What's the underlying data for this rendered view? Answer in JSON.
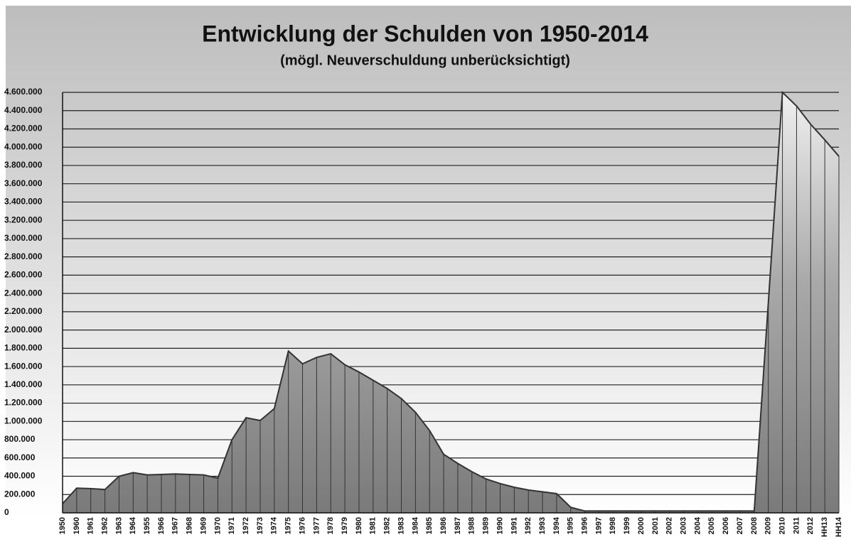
{
  "chart_data": {
    "type": "area",
    "title": "Entwicklung der Schulden von 1950-2014",
    "subtitle": "(mögl. Neuverschuldung unberücksichtigt)",
    "categories": [
      "1950",
      "1960",
      "1961",
      "1962",
      "1963",
      "1964",
      "1955",
      "1966",
      "1967",
      "1968",
      "1969",
      "1970",
      "1971",
      "1972",
      "1973",
      "1974",
      "1975",
      "1976",
      "1977",
      "1978",
      "1979",
      "1980",
      "1981",
      "1982",
      "1983",
      "1984",
      "1985",
      "1986",
      "1987",
      "1988",
      "1989",
      "1990",
      "1991",
      "1992",
      "1993",
      "1994",
      "1995",
      "1996",
      "1997",
      "1998",
      "1999",
      "2000",
      "2001",
      "2002",
      "2003",
      "2004",
      "2005",
      "2006",
      "2007",
      "2008",
      "2009",
      "2010",
      "2011",
      "2012",
      "HH13",
      "HH14"
    ],
    "values": [
      100000,
      270000,
      265000,
      255000,
      400000,
      440000,
      415000,
      420000,
      425000,
      420000,
      415000,
      380000,
      800000,
      1040000,
      1010000,
      1140000,
      1770000,
      1630000,
      1700000,
      1740000,
      1620000,
      1540000,
      1450000,
      1360000,
      1250000,
      1100000,
      900000,
      640000,
      540000,
      450000,
      370000,
      320000,
      280000,
      250000,
      230000,
      210000,
      60000,
      20000,
      20000,
      20000,
      20000,
      20000,
      20000,
      20000,
      20000,
      20000,
      20000,
      20000,
      20000,
      20000,
      2300000,
      4600000,
      4450000,
      4250000,
      4080000,
      3900000
    ],
    "color": "#808080",
    "ylim": [
      0,
      4600000
    ],
    "yticks": [
      0,
      {
        "value": 200000,
        "label": "200.000"
      },
      {
        "value": 400000,
        "label": "400.000"
      },
      {
        "value": 600000,
        "label": "600.000"
      },
      {
        "value": 800000,
        "label": "800.000"
      },
      {
        "value": 1000000,
        "label": "1.000.000"
      },
      {
        "value": 1200000,
        "label": "1.200.000"
      },
      {
        "value": 1400000,
        "label": "1.400.000"
      },
      {
        "value": 1600000,
        "label": "1.600.000"
      },
      {
        "value": 1800000,
        "label": "1.800.000"
      },
      {
        "value": 2000000,
        "label": "2.000.000"
      },
      {
        "value": 2200000,
        "label": "2.200.000"
      },
      {
        "value": 2400000,
        "label": "2.400.000"
      },
      {
        "value": 2600000,
        "label": "2.600.000"
      },
      {
        "value": 2800000,
        "label": "2.800.000"
      },
      {
        "value": 3000000,
        "label": "3.000.000"
      },
      {
        "value": 3200000,
        "label": "3.200.000"
      },
      {
        "value": 3400000,
        "label": "3.400.000"
      },
      {
        "value": 3600000,
        "label": "3.600.000"
      },
      {
        "value": 3800000,
        "label": "3.800.000"
      },
      {
        "value": 4000000,
        "label": "4.000.000"
      },
      {
        "value": 4200000,
        "label": "4.200.000"
      },
      {
        "value": 4400000,
        "label": "4.400.000"
      },
      {
        "value": 4600000,
        "label": "4.600.000"
      }
    ],
    "grid": true
  }
}
